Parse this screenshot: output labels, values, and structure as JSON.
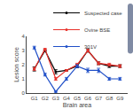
{
  "chart_data": {
    "type": "line",
    "x_label": "Brain area",
    "y_label": "Lesion score",
    "categories": [
      "G1",
      "G2",
      "G3",
      "G4",
      "G5",
      "G6",
      "G7",
      "G8",
      "G9"
    ],
    "series": [
      {
        "name": "Suspected case",
        "color": "#000000",
        "values": [
          1.7,
          3.0,
          1.5,
          1.6,
          1.9,
          3.0,
          2.1,
          1.9,
          1.9
        ],
        "errors": [
          0.15,
          0.05,
          0.15,
          0.05,
          0.12,
          0.12,
          0.1,
          0.1,
          0.1
        ]
      },
      {
        "name": "Ovine BSE",
        "color": "#e8302a",
        "values": [
          1.7,
          3.1,
          1.0,
          1.6,
          2.0,
          3.0,
          2.1,
          2.0,
          1.9
        ],
        "errors": [
          0.1,
          0.05,
          0.1,
          0.05,
          0.1,
          0.1,
          0.1,
          0.1,
          0.1
        ]
      },
      {
        "name": "301V",
        "color": "#1f4fc8",
        "values": [
          3.2,
          1.3,
          0.1,
          1.0,
          1.9,
          1.6,
          1.6,
          1.0,
          1.0
        ],
        "errors": [
          0.1,
          0.1,
          0.05,
          0.1,
          0.1,
          0.15,
          0.15,
          0.1,
          0.1
        ]
      }
    ],
    "ylim": [
      0,
      4
    ],
    "yticks": [
      0,
      1,
      2,
      3,
      4
    ],
    "grid": false,
    "legend": "upper right",
    "marker": "circle"
  }
}
